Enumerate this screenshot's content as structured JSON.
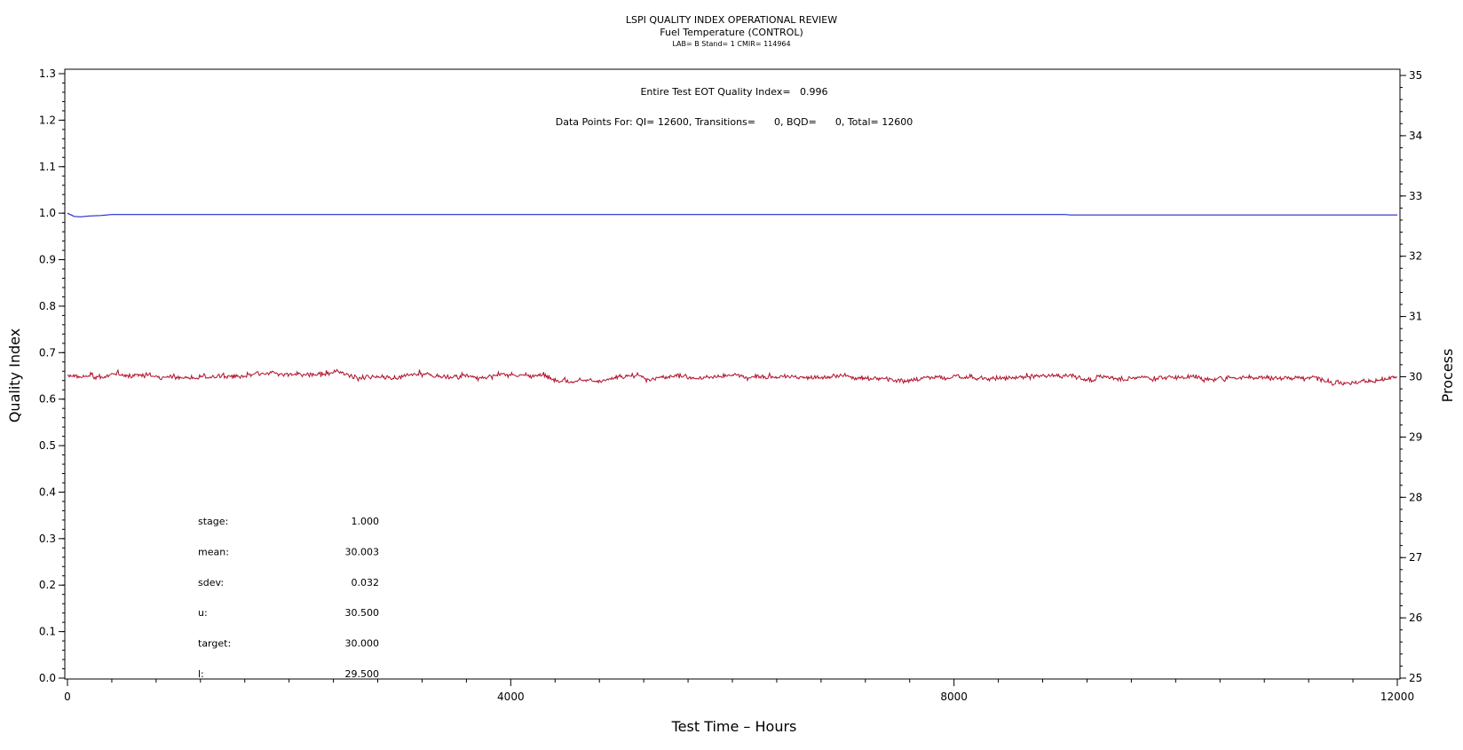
{
  "chart_data": {
    "type": "line",
    "title": "LSPI QUALITY INDEX OPERATIONAL REVIEW",
    "subtitle": "Fuel Temperature (CONTROL)",
    "subtitle2": "LAB= B Stand= 1 CMIR= 114964",
    "xlabel": "Test Time – Hours",
    "ylabel_left": "Quality Index",
    "ylabel_right": "Process",
    "xlim": [
      0,
      12000
    ],
    "xticks": [
      0,
      4000,
      8000,
      12000
    ],
    "ylim_left": [
      0.0,
      1.3
    ],
    "yticks_left": [
      "0.0",
      "0.1",
      "0.2",
      "0.3",
      "0.4",
      "0.5",
      "0.6",
      "0.7",
      "0.8",
      "0.9",
      "1.0",
      "1.1",
      "1.2",
      "1.3"
    ],
    "ylim_right": [
      25,
      35
    ],
    "yticks_right": [
      "25",
      "26",
      "27",
      "28",
      "29",
      "30",
      "31",
      "32",
      "33",
      "34",
      "35"
    ],
    "grid": false,
    "annotations": {
      "eot": "Entire Test EOT Quality Index=   0.996",
      "points": "Data Points For: QI= 12600, Transitions=      0, BQD=      0, Total= 12600"
    },
    "stats": [
      {
        "label": "stage:",
        "value": "1.000"
      },
      {
        "label": "mean:",
        "value": "30.003"
      },
      {
        "label": "sdev:",
        "value": "0.032"
      },
      {
        "label": "u:",
        "value": "30.500"
      },
      {
        "label": "target:",
        "value": "30.000"
      },
      {
        "label": "l:",
        "value": "29.500"
      }
    ],
    "series": [
      {
        "axis": "left",
        "color": "#1f2bd0",
        "points": [
          [
            0,
            1.0
          ],
          [
            60,
            0.993
          ],
          [
            120,
            0.992
          ],
          [
            200,
            0.994
          ],
          [
            300,
            0.995
          ],
          [
            400,
            0.997
          ],
          [
            500,
            0.997
          ],
          [
            9000,
            0.997
          ],
          [
            9050,
            0.996
          ],
          [
            12000,
            0.996
          ]
        ]
      },
      {
        "axis": "right",
        "color": "#b0102a",
        "mean": 30.003,
        "sdev": 0.032,
        "samples": 12600
      }
    ]
  }
}
